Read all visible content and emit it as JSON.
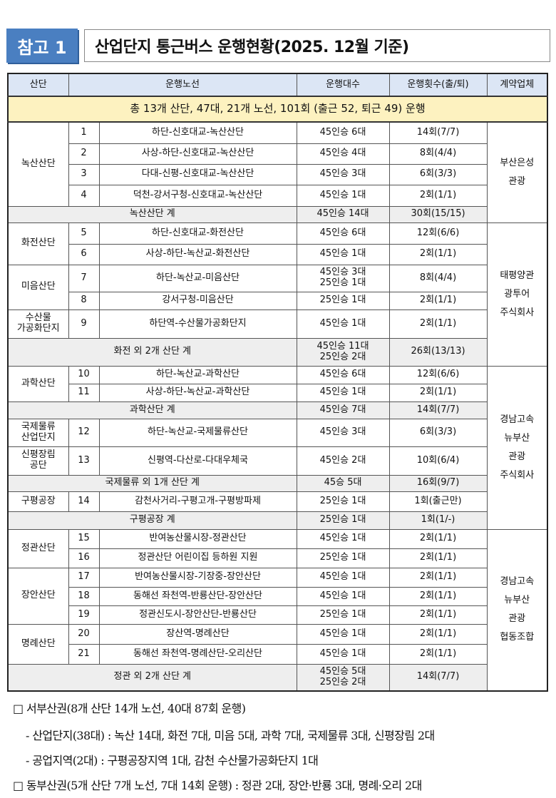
{
  "badge": "참고 1",
  "title": "산업단지 통근버스 운행현황(2025. 12월 기준)",
  "headers": [
    "산단",
    "운행노선",
    "운행대수",
    "운행횟수(출/퇴)",
    "계약업체"
  ],
  "total": "총 13개 산단,  47대,  21개 노선,  101회 (출근 52, 퇴근 49) 운행",
  "rows": [
    {
      "park": "녹산산단",
      "no": "1",
      "route": "하단-신호대교-녹산산단",
      "buses": "45인승 6대",
      "trips": "14회(7/7)",
      "operator": "부산은성\n관광"
    },
    {
      "park": "녹산산단",
      "no": "2",
      "route": "사상-하단-신호대교-녹산산단",
      "buses": "45인승 4대",
      "trips": "8회(4/4)",
      "operator": "부산은성\n관광"
    },
    {
      "park": "녹산산단",
      "no": "3",
      "route": "다대-신평-신호대교-녹산산단",
      "buses": "45인승 3대",
      "trips": "6회(3/3)",
      "operator": "부산은성\n관광"
    },
    {
      "park": "녹산산단",
      "no": "4",
      "route": "덕천-강서구청-신호대교-녹산산단",
      "buses": "45인승 1대",
      "trips": "2회(1/1)",
      "operator": "부산은성\n관광"
    },
    {
      "subtotal": "녹산산단 계",
      "buses": "45인승 14대",
      "trips": "30회(15/15)",
      "operator": "부산은성\n관광"
    },
    {
      "park": "화전산단",
      "no": "5",
      "route": "하단-신호대교-화전산단",
      "buses": "45인승 6대",
      "trips": "12회(6/6)",
      "operator": "태평양관\n광투어\n주식회사"
    },
    {
      "park": "화전산단",
      "no": "6",
      "route": "사상-하단-녹산교-화전산단",
      "buses": "45인승 1대",
      "trips": "2회(1/1)",
      "operator": "태평양관\n광투어\n주식회사"
    },
    {
      "park": "미음산단",
      "no": "7",
      "route": "하단-녹산교-미음산단",
      "buses": "45인승 3대\n25인승 1대",
      "trips": "8회(4/4)",
      "operator": "태평양관\n광투어\n주식회사"
    },
    {
      "park": "미음산단",
      "no": "8",
      "route": "강서구청-미음산단",
      "buses": "25인승 1대",
      "trips": "2회(1/1)",
      "operator": "태평양관\n광투어\n주식회사"
    },
    {
      "park": "수산물\n가공화단지",
      "no": "9",
      "route": "하단역-수산물가공화단지",
      "buses": "45인승 1대",
      "trips": "2회(1/1)",
      "operator": "태평양관\n광투어\n주식회사"
    },
    {
      "subtotal": "화전 외 2개 산단 계",
      "buses": "45인승 11대\n25인승 2대",
      "trips": "26회(13/13)",
      "operator": "태평양관\n광투어\n주식회사"
    },
    {
      "park": "과학산단",
      "no": "10",
      "route": "하단-녹산교-과학산단",
      "buses": "45인승 6대",
      "trips": "12회(6/6)",
      "operator": "경남고속\n뉴부산\n관광\n주식회사"
    },
    {
      "park": "과학산단",
      "no": "11",
      "route": "사상-하단-녹산교-과학산단",
      "buses": "45인승 1대",
      "trips": "2회(1/1)",
      "operator": "경남고속\n뉴부산\n관광\n주식회사"
    },
    {
      "subtotal": "과학산단 계",
      "buses": "45인승 7대",
      "trips": "14회(7/7)",
      "operator": "경남고속\n뉴부산\n관광\n주식회사"
    },
    {
      "park": "국제물류\n산업단지",
      "no": "12",
      "route": "하단-녹산교-국제물류산단",
      "buses": "45인승 3대",
      "trips": "6회(3/3)",
      "operator": "경남고속\n뉴부산\n관광\n주식회사"
    },
    {
      "park": "신평장림\n공단",
      "no": "13",
      "route": "신평역-다산로-다대우체국",
      "buses": "45인승 2대",
      "trips": "10회(6/4)",
      "operator": "경남고속\n뉴부산\n관광\n주식회사"
    },
    {
      "subtotal": "국제물류 외 1개 산단 계",
      "buses": "45승 5대",
      "trips": "16회(9/7)",
      "operator": "경남고속\n뉴부산\n관광\n주식회사"
    },
    {
      "park": "구평공장",
      "no": "14",
      "route": "감천사거리-구평고개-구평방파제",
      "buses": "25인승 1대",
      "trips": "1회(출근만)",
      "operator": "경남고속\n뉴부산\n관광\n주식회사"
    },
    {
      "subtotal": "구평공장 계",
      "buses": "25인승 1대",
      "trips": "1회(1/-)",
      "operator": "경남고속\n뉴부산\n관광\n주식회사"
    },
    {
      "park": "정관산단",
      "no": "15",
      "route": "반여농산물시장-정관산단",
      "buses": "45인승 1대",
      "trips": "2회(1/1)",
      "operator": "경남고속\n뉴부산\n관광\n협동조합"
    },
    {
      "park": "정관산단",
      "no": "16",
      "route": "정관산단 어린이집 등하원 지원",
      "buses": "25인승 1대",
      "trips": "2회(1/1)",
      "operator": "경남고속\n뉴부산\n관광\n협동조합"
    },
    {
      "park": "장안산단",
      "no": "17",
      "route": "반여농산물시장-기장중-장안산단",
      "buses": "45인승 1대",
      "trips": "2회(1/1)",
      "operator": "경남고속\n뉴부산\n관광\n협동조합"
    },
    {
      "park": "장안산단",
      "no": "18",
      "route": "동해선 좌천역-반룡산단-장안산단",
      "buses": "45인승 1대",
      "trips": "2회(1/1)",
      "operator": "경남고속\n뉴부산\n관광\n협동조합"
    },
    {
      "park": "장안산단",
      "no": "19",
      "route": "정관신도시-장안산단-반룡산단",
      "buses": "25인승 1대",
      "trips": "2회(1/1)",
      "operator": "경남고속\n뉴부산\n관광\n협동조합"
    },
    {
      "park": "명례산단",
      "no": "20",
      "route": "장산역-명례산단",
      "buses": "45인승 1대",
      "trips": "2회(1/1)",
      "operator": "경남고속\n뉴부산\n관광\n협동조합"
    },
    {
      "park": "명례산단",
      "no": "21",
      "route": "동해선 좌천역-명례산단-오리산단",
      "buses": "45인승 1대",
      "trips": "2회(1/1)",
      "operator": "경남고속\n뉴부산\n관광\n협동조합"
    },
    {
      "subtotal": "정관 외 2개 산단 계",
      "buses": "45인승 5대\n25인승 2대",
      "trips": "14회(7/7)",
      "operator": "경남고속\n뉴부산\n관광\n협동조합"
    }
  ],
  "notes": [
    "□ 서부산권(8개 산단 14개 노선, 40대 87회 운행)",
    "- 산업단지(38대) : 녹산 14대, 화전 7대, 미음 5대, 과학 7대, 국제물류 3대, 신평장림 2대",
    "- 공업지역(2대) : 구평공장지역 1대, 감천 수산물가공화단지 1대",
    "□   동부산권(5개 산단 7개 노선, 7대 14회 운행) : 정관 2대, 장안·반룡 3대, 명례·오리 2대"
  ]
}
